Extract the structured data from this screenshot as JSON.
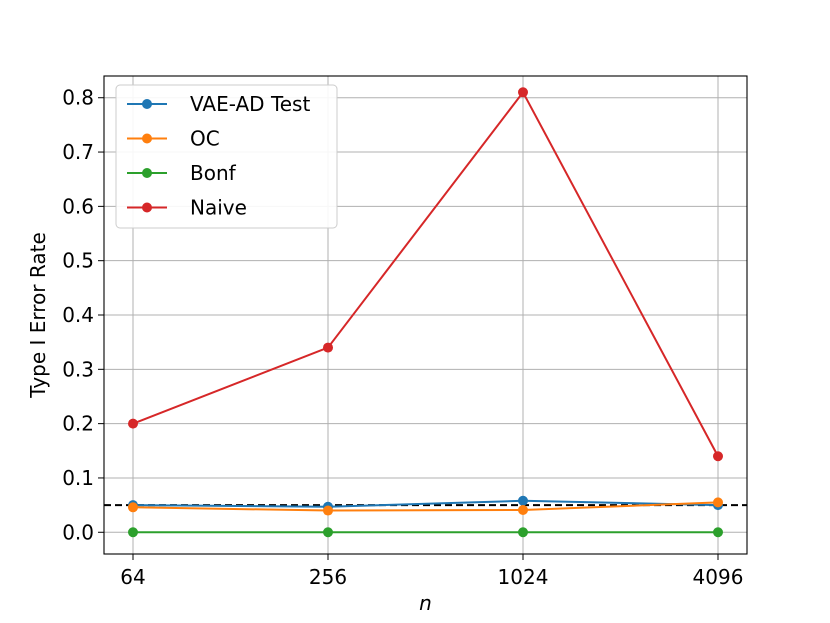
{
  "chart_data": {
    "type": "line",
    "x": [
      64,
      256,
      1024,
      4096
    ],
    "x_tick_labels": [
      "64",
      "256",
      "1024",
      "4096"
    ],
    "x_scale": "log2",
    "xlabel": "n",
    "ylabel": "Type I Error Rate",
    "ylim": [
      -0.04,
      0.84
    ],
    "y_ticks": [
      0.0,
      0.1,
      0.2,
      0.3,
      0.4,
      0.5,
      0.6,
      0.7,
      0.8
    ],
    "y_tick_labels": [
      "0.0",
      "0.1",
      "0.2",
      "0.3",
      "0.4",
      "0.5",
      "0.6",
      "0.7",
      "0.8"
    ],
    "grid": true,
    "legend_position": "top-left",
    "reference_line": {
      "y": 0.05,
      "style": "dashed",
      "color": "#000000"
    },
    "series": [
      {
        "name": "VAE-AD Test",
        "color": "#1f77b4",
        "values": [
          0.05,
          0.047,
          0.058,
          0.05
        ]
      },
      {
        "name": "OC",
        "color": "#ff7f0e",
        "values": [
          0.046,
          0.04,
          0.041,
          0.055
        ]
      },
      {
        "name": "Bonf",
        "color": "#2ca02c",
        "values": [
          0.0,
          0.0,
          0.0,
          0.0
        ]
      },
      {
        "name": "Naive",
        "color": "#d62728",
        "values": [
          0.2,
          0.34,
          0.81,
          0.14
        ]
      }
    ]
  }
}
